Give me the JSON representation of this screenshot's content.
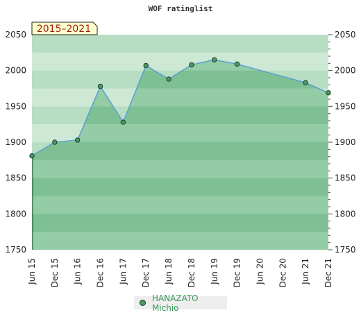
{
  "chart_data": {
    "type": "area",
    "title": "WOF ratinglist",
    "period_badge": "2015–2021",
    "ylim": [
      1750,
      2050
    ],
    "yticks": [
      1750,
      1800,
      1850,
      1900,
      1950,
      2000,
      2050
    ],
    "xticks": [
      "Jun 15",
      "Dec 15",
      "Jun 16",
      "Dec 16",
      "Jun 17",
      "Dec 17",
      "Jun 18",
      "Dec 18",
      "Jun 19",
      "Dec 19",
      "Jun 20",
      "Dec 20",
      "Jun 21",
      "Dec 21"
    ],
    "series": [
      {
        "name": "HANAZATO Michio",
        "color": "#4a9a64",
        "line_color": "#5a9fd0",
        "points": [
          {
            "x": "Jun 15",
            "y": 1881
          },
          {
            "x": "Dec 15",
            "y": 1900
          },
          {
            "x": "Jun 16",
            "y": 1903
          },
          {
            "x": "Dec 16",
            "y": 1978
          },
          {
            "x": "Jun 17",
            "y": 1928
          },
          {
            "x": "Dec 17",
            "y": 2007
          },
          {
            "x": "Jun 18",
            "y": 1988
          },
          {
            "x": "Dec 18",
            "y": 2008
          },
          {
            "x": "Jun 19",
            "y": 2015
          },
          {
            "x": "Dec 19",
            "y": 2009
          },
          {
            "x": "Jun 21",
            "y": 1983
          },
          {
            "x": "Dec 21",
            "y": 1969
          }
        ]
      }
    ],
    "grid": true
  },
  "legend": {
    "label": "HANAZATO Michio"
  }
}
